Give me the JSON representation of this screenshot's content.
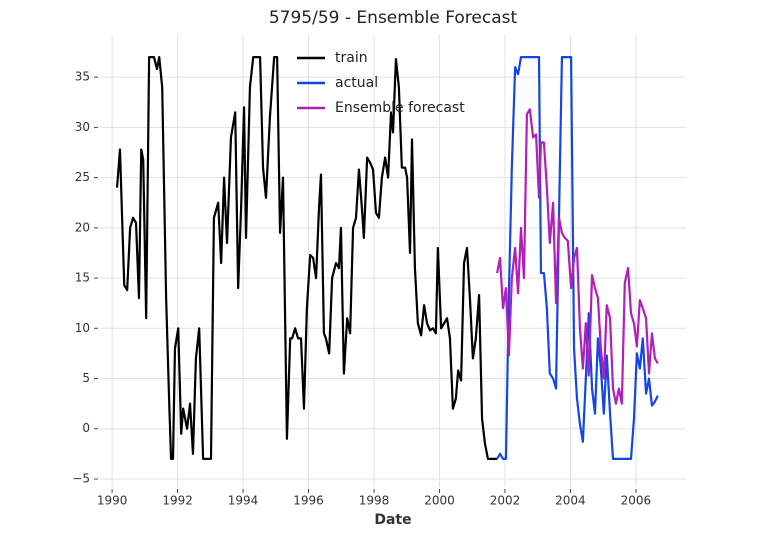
{
  "chart_data": {
    "type": "line",
    "title": "5795/59 - Ensemble Forecast",
    "xlabel": "Date",
    "xlim": [
      1989.63,
      2007.53
    ],
    "ylim": [
      -5.8,
      39.2
    ],
    "xticks": [
      1990,
      1992,
      1994,
      1996,
      1998,
      2000,
      2002,
      2004,
      2006
    ],
    "yticks": [
      {
        "value": -5,
        "label": "−5"
      },
      0,
      5,
      10,
      15,
      20,
      25,
      30,
      35
    ],
    "grid": true,
    "legend_loc": "upper center",
    "series": [
      {
        "name": "train",
        "color": "#000000",
        "x": [
          1990.15,
          1990.24,
          1990.37,
          1990.46,
          1990.55,
          1990.64,
          1990.73,
          1990.82,
          1990.89,
          1990.95,
          1991.04,
          1991.13,
          1991.28,
          1991.37,
          1991.44,
          1991.53,
          1991.65,
          1991.74,
          1991.8,
          1991.86,
          1991.92,
          1992.02,
          1992.11,
          1992.17,
          1992.29,
          1992.38,
          1992.47,
          1992.56,
          1992.66,
          1992.78,
          1992.9,
          1993.02,
          1993.11,
          1993.24,
          1993.33,
          1993.42,
          1993.51,
          1993.63,
          1993.76,
          1993.85,
          1993.94,
          1994.03,
          1994.09,
          1994.21,
          1994.31,
          1994.52,
          1994.61,
          1994.7,
          1994.82,
          1994.95,
          1995.04,
          1995.13,
          1995.22,
          1995.34,
          1995.44,
          1995.5,
          1995.59,
          1995.68,
          1995.77,
          1995.86,
          1995.95,
          1996.05,
          1996.14,
          1996.23,
          1996.32,
          1996.38,
          1996.47,
          1996.53,
          1996.63,
          1996.72,
          1996.84,
          1996.93,
          1996.99,
          1997.08,
          1997.18,
          1997.27,
          1997.36,
          1997.45,
          1997.54,
          1997.63,
          1997.69,
          1997.79,
          1997.88,
          1997.97,
          1998.06,
          1998.15,
          1998.24,
          1998.34,
          1998.43,
          1998.52,
          1998.58,
          1998.67,
          1998.76,
          1998.85,
          1998.95,
          1999.01,
          1999.1,
          1999.16,
          1999.25,
          1999.34,
          1999.44,
          1999.53,
          1999.62,
          1999.71,
          1999.8,
          1999.89,
          1999.95,
          2000.05,
          2000.14,
          2000.23,
          2000.32,
          2000.41,
          2000.5,
          2000.57,
          2000.66,
          2000.75,
          2000.84,
          2000.93,
          2001.02,
          2001.11,
          2001.21,
          2001.3,
          2001.39,
          2001.48,
          2001.57,
          2001.66,
          2001.76
        ],
        "values": [
          24,
          27.8,
          14.3,
          13.8,
          20,
          21,
          20.5,
          13,
          27.8,
          26.8,
          11,
          37,
          37,
          35.8,
          37,
          34,
          13,
          3,
          -3,
          -3,
          8,
          10,
          -0.5,
          2,
          0,
          2.5,
          -2.5,
          7,
          10,
          -3,
          -3,
          -3,
          21,
          22.5,
          16.5,
          25,
          18.5,
          29,
          31.5,
          14,
          22,
          32,
          19,
          34,
          37,
          37,
          26,
          23,
          31,
          37,
          37,
          19.5,
          25,
          -1,
          9,
          9,
          10,
          9,
          9,
          2,
          12,
          17.3,
          17,
          15,
          22,
          25.3,
          9.5,
          9,
          7.5,
          15,
          16.5,
          16,
          20,
          5.5,
          11,
          9.5,
          20,
          21,
          25.8,
          22,
          19,
          27,
          26.5,
          25.8,
          21.5,
          21,
          25,
          27,
          25,
          31.5,
          29.5,
          36.8,
          34,
          26,
          26,
          25,
          17.5,
          28.8,
          16,
          10.5,
          9.3,
          12.3,
          10.5,
          9.8,
          10,
          9.5,
          18,
          10,
          10.5,
          11,
          9,
          2,
          3,
          5.8,
          4.8,
          16.5,
          18,
          13,
          7,
          9,
          13.3,
          1,
          -1.5,
          -3,
          -3,
          -3,
          -3
        ]
      },
      {
        "name": "actual",
        "color": "#1446e6",
        "x": [
          2001.76,
          2001.85,
          2001.94,
          2002.03,
          2002.12,
          2002.21,
          2002.31,
          2002.4,
          2002.49,
          2002.58,
          2002.67,
          2002.76,
          2002.86,
          2002.95,
          2003.04,
          2003.1,
          2003.19,
          2003.28,
          2003.37,
          2003.47,
          2003.56,
          2003.65,
          2003.74,
          2003.83,
          2003.92,
          2004.02,
          2004.11,
          2004.2,
          2004.29,
          2004.38,
          2004.47,
          2004.56,
          2004.66,
          2004.75,
          2004.84,
          2004.93,
          2005.02,
          2005.11,
          2005.21,
          2005.3,
          2005.39,
          2005.48,
          2005.57,
          2005.66,
          2005.76,
          2005.85,
          2005.94,
          2006.03,
          2006.12,
          2006.21,
          2006.31,
          2006.4,
          2006.49,
          2006.58,
          2006.67
        ],
        "values": [
          -3,
          -2.5,
          -3,
          -3,
          13.5,
          26,
          36,
          35.3,
          37,
          37,
          37,
          37,
          37,
          37,
          37,
          15.5,
          15.5,
          12,
          5.5,
          5,
          4,
          21,
          37,
          37,
          37,
          37,
          8,
          3,
          0.5,
          -1.3,
          5,
          11.5,
          4,
          1.5,
          9,
          6,
          1.5,
          7.3,
          1.5,
          -3,
          -3,
          -3,
          -3,
          -3,
          -3,
          -3,
          1,
          7.5,
          6,
          9,
          3.5,
          5,
          2.3,
          2.7,
          3.3
        ]
      },
      {
        "name": "Ensemble forecast",
        "color": "#b01fb8",
        "x": [
          2001.76,
          2001.85,
          2001.94,
          2002.03,
          2002.12,
          2002.21,
          2002.31,
          2002.4,
          2002.49,
          2002.58,
          2002.67,
          2002.76,
          2002.86,
          2002.95,
          2003.04,
          2003.1,
          2003.19,
          2003.28,
          2003.37,
          2003.47,
          2003.56,
          2003.65,
          2003.74,
          2003.83,
          2003.92,
          2004.02,
          2004.11,
          2004.2,
          2004.29,
          2004.38,
          2004.47,
          2004.56,
          2004.66,
          2004.75,
          2004.84,
          2004.93,
          2005.02,
          2005.11,
          2005.21,
          2005.3,
          2005.39,
          2005.48,
          2005.57,
          2005.66,
          2005.76,
          2005.85,
          2005.94,
          2006.03,
          2006.12,
          2006.21,
          2006.31,
          2006.4,
          2006.49,
          2006.58,
          2006.67
        ],
        "values": [
          15.5,
          17,
          12,
          14,
          7.3,
          15,
          18,
          13.5,
          20,
          15,
          31.3,
          31.8,
          29,
          29.3,
          23,
          28.5,
          28.5,
          24,
          18.5,
          22.5,
          12.5,
          21,
          19.5,
          19,
          18.7,
          14,
          17,
          18,
          10,
          6,
          10.5,
          5.3,
          15.3,
          14,
          13,
          8,
          5,
          12.3,
          11,
          4,
          2.5,
          4,
          2.5,
          14.5,
          16,
          11.5,
          10.5,
          8.2,
          12.8,
          12,
          11,
          5.5,
          9.5,
          7,
          6.5
        ]
      }
    ]
  }
}
